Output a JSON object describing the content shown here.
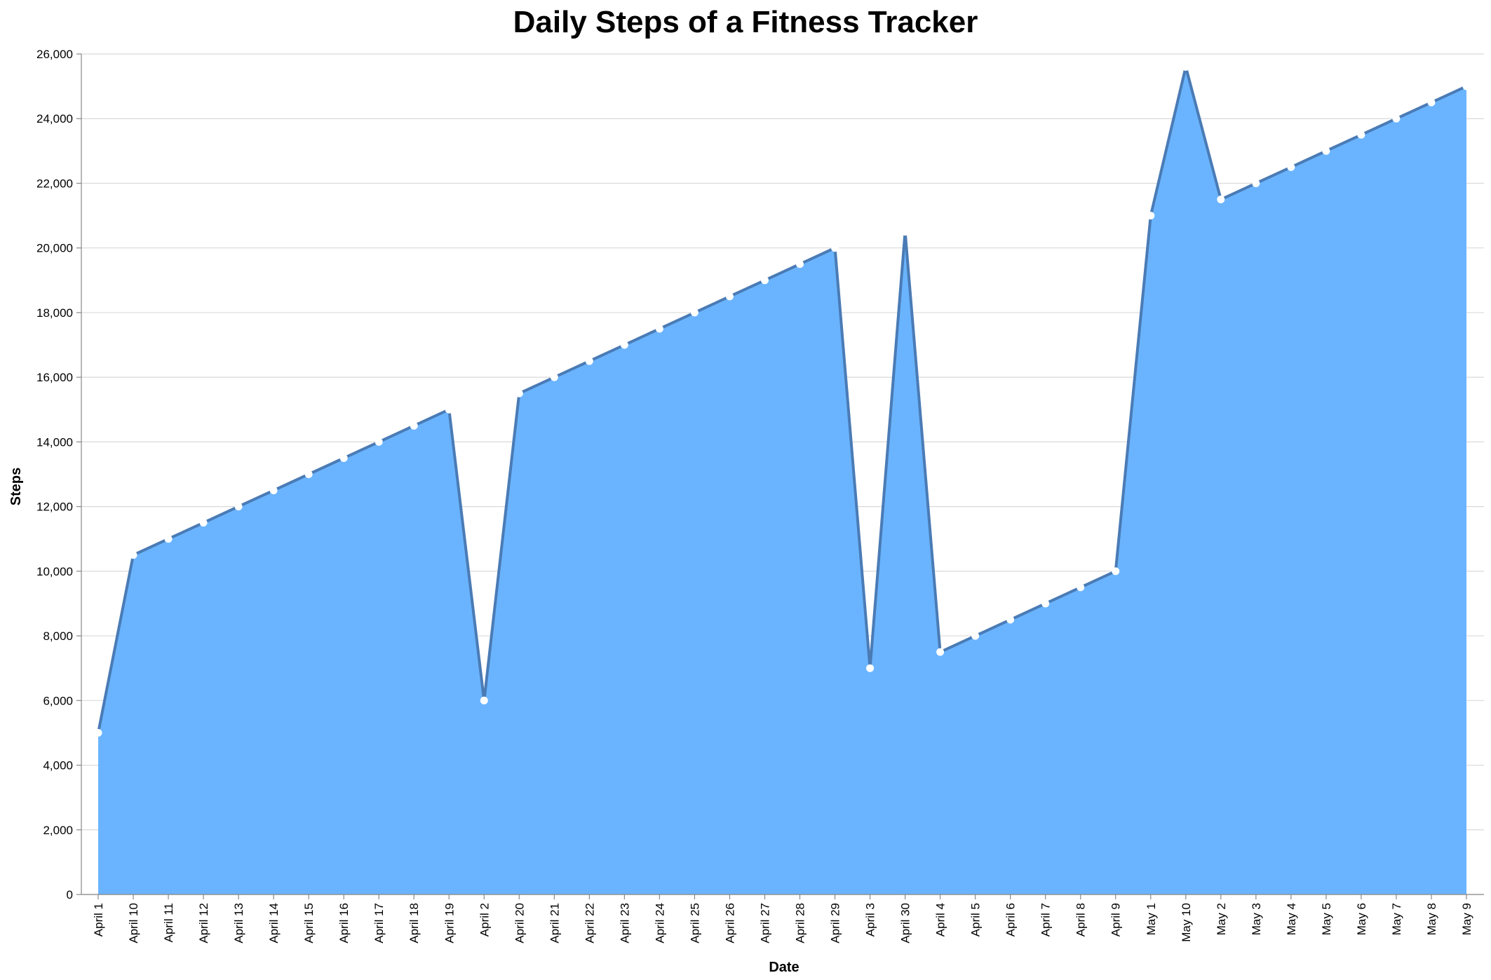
{
  "chart_data": {
    "type": "area",
    "title": "Daily Steps of a Fitness Tracker",
    "xlabel": "Date",
    "ylabel": "Steps",
    "ylim": [
      0,
      26000
    ],
    "yticks": [
      0,
      2000,
      4000,
      6000,
      8000,
      10000,
      12000,
      14000,
      16000,
      18000,
      20000,
      22000,
      24000,
      26000
    ],
    "ytick_labels": [
      "0",
      "2,000",
      "4,000",
      "6,000",
      "8,000",
      "10,000",
      "12,000",
      "14,000",
      "16,000",
      "18,000",
      "20,000",
      "22,000",
      "24,000",
      "26,000"
    ],
    "grid": true,
    "x_order": "categories sorted alphabetically",
    "categories": [
      "April 1",
      "April 10",
      "April 11",
      "April 12",
      "April 13",
      "April 14",
      "April 15",
      "April 16",
      "April 17",
      "April 18",
      "April 19",
      "April 2",
      "April 20",
      "April 21",
      "April 22",
      "April 23",
      "April 24",
      "April 25",
      "April 26",
      "April 27",
      "April 28",
      "April 29",
      "April 3",
      "April 30",
      "April 4",
      "April 5",
      "April 6",
      "April 7",
      "April 8",
      "April 9",
      "May 1",
      "May 10",
      "May 2",
      "May 3",
      "May 4",
      "May 5",
      "May 6",
      "May 7",
      "May 8",
      "May 9"
    ],
    "values": [
      5000,
      10500,
      11000,
      11500,
      12000,
      12500,
      13000,
      13500,
      14000,
      14500,
      15000,
      6000,
      15500,
      16000,
      16500,
      17000,
      17500,
      18000,
      18500,
      19000,
      19500,
      20000,
      7000,
      20500,
      7500,
      8000,
      8500,
      9000,
      9500,
      10000,
      21000,
      25600,
      21500,
      22000,
      22500,
      23000,
      23500,
      24000,
      24500,
      25000
    ],
    "colors": {
      "area_fill": "#6ab4ff",
      "line": "#4a7bb5",
      "point": "#ffffff"
    }
  }
}
